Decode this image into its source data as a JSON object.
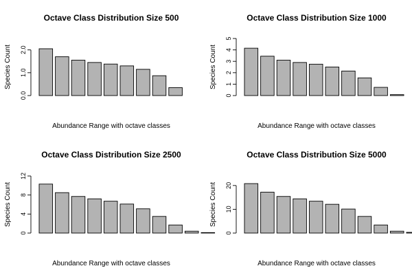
{
  "bar_color": "#b3b3b3",
  "chart_data": [
    {
      "type": "bar",
      "title": "Octave Class Distribution Size  500",
      "xlabel": "Abundance Range with octave classes",
      "ylabel": "Species Count",
      "yticks": [
        "0.0",
        "1.0",
        "2.0"
      ],
      "ylim": [
        0,
        2.5
      ],
      "values": [
        2.05,
        1.7,
        1.55,
        1.45,
        1.38,
        1.3,
        1.15,
        0.87,
        0.35
      ]
    },
    {
      "type": "bar",
      "title": "Octave Class Distribution Size  1000",
      "xlabel": "Abundance Range with octave classes",
      "ylabel": "Species Count",
      "yticks": [
        "0",
        "1",
        "2",
        "3",
        "4",
        "5"
      ],
      "ylim": [
        0,
        5
      ],
      "values": [
        4.15,
        3.45,
        3.1,
        2.9,
        2.75,
        2.5,
        2.15,
        1.55,
        0.72,
        0.08
      ]
    },
    {
      "type": "bar",
      "title": "Octave Class Distribution Size  2500",
      "xlabel": "Abundance Range with octave classes",
      "ylabel": "Species Count",
      "yticks": [
        "0",
        "4",
        "8",
        "12"
      ],
      "ylim": [
        0,
        12
      ],
      "values": [
        10.3,
        8.5,
        7.7,
        7.2,
        6.7,
        6.1,
        5.1,
        3.5,
        1.7,
        0.4,
        0.1
      ]
    },
    {
      "type": "bar",
      "title": "Octave Class Distribution Size  5000",
      "xlabel": "Abundance Range with octave classes",
      "ylabel": "Species Count",
      "yticks": [
        "0",
        "10",
        "20"
      ],
      "ylim": [
        0,
        24
      ],
      "values": [
        20.8,
        17.2,
        15.4,
        14.4,
        13.4,
        12.1,
        10.1,
        7.0,
        3.4,
        0.8,
        0.3
      ]
    }
  ]
}
